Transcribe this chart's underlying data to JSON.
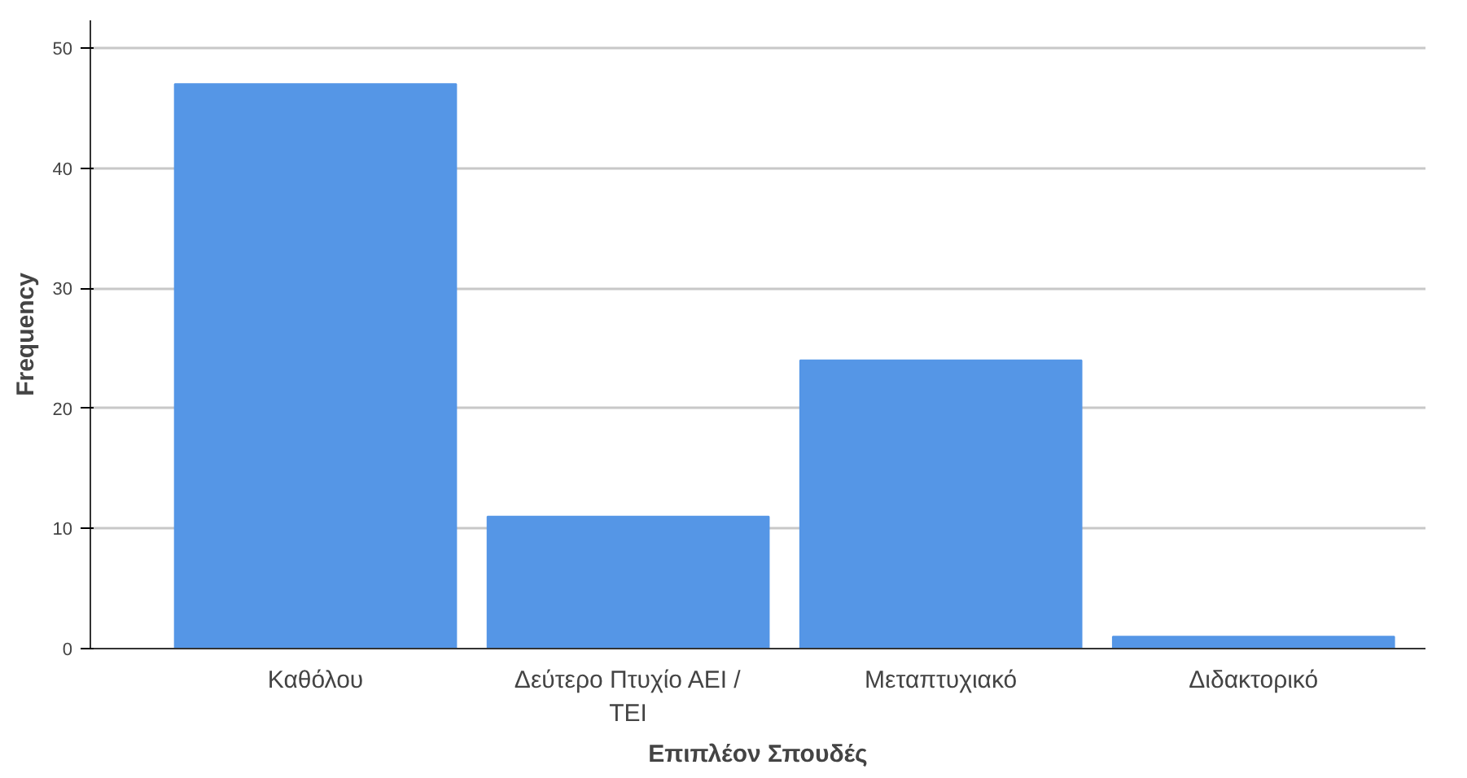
{
  "chart_data": {
    "type": "bar",
    "xlabel": "Επιπλέον Σπουδές",
    "ylabel": "Frequency",
    "categories": [
      "Καθόλου",
      "Δεύτερο Πτυχίο ΑΕΙ / ΤΕΙ",
      "Μεταπτυχιακό",
      "Διδακτορικό"
    ],
    "values": [
      47,
      11,
      24,
      1
    ],
    "color": "#5596e6",
    "ylim": [
      0,
      52.3
    ],
    "yticks": [
      0,
      10,
      20,
      30,
      40,
      50
    ],
    "grid": "y"
  }
}
